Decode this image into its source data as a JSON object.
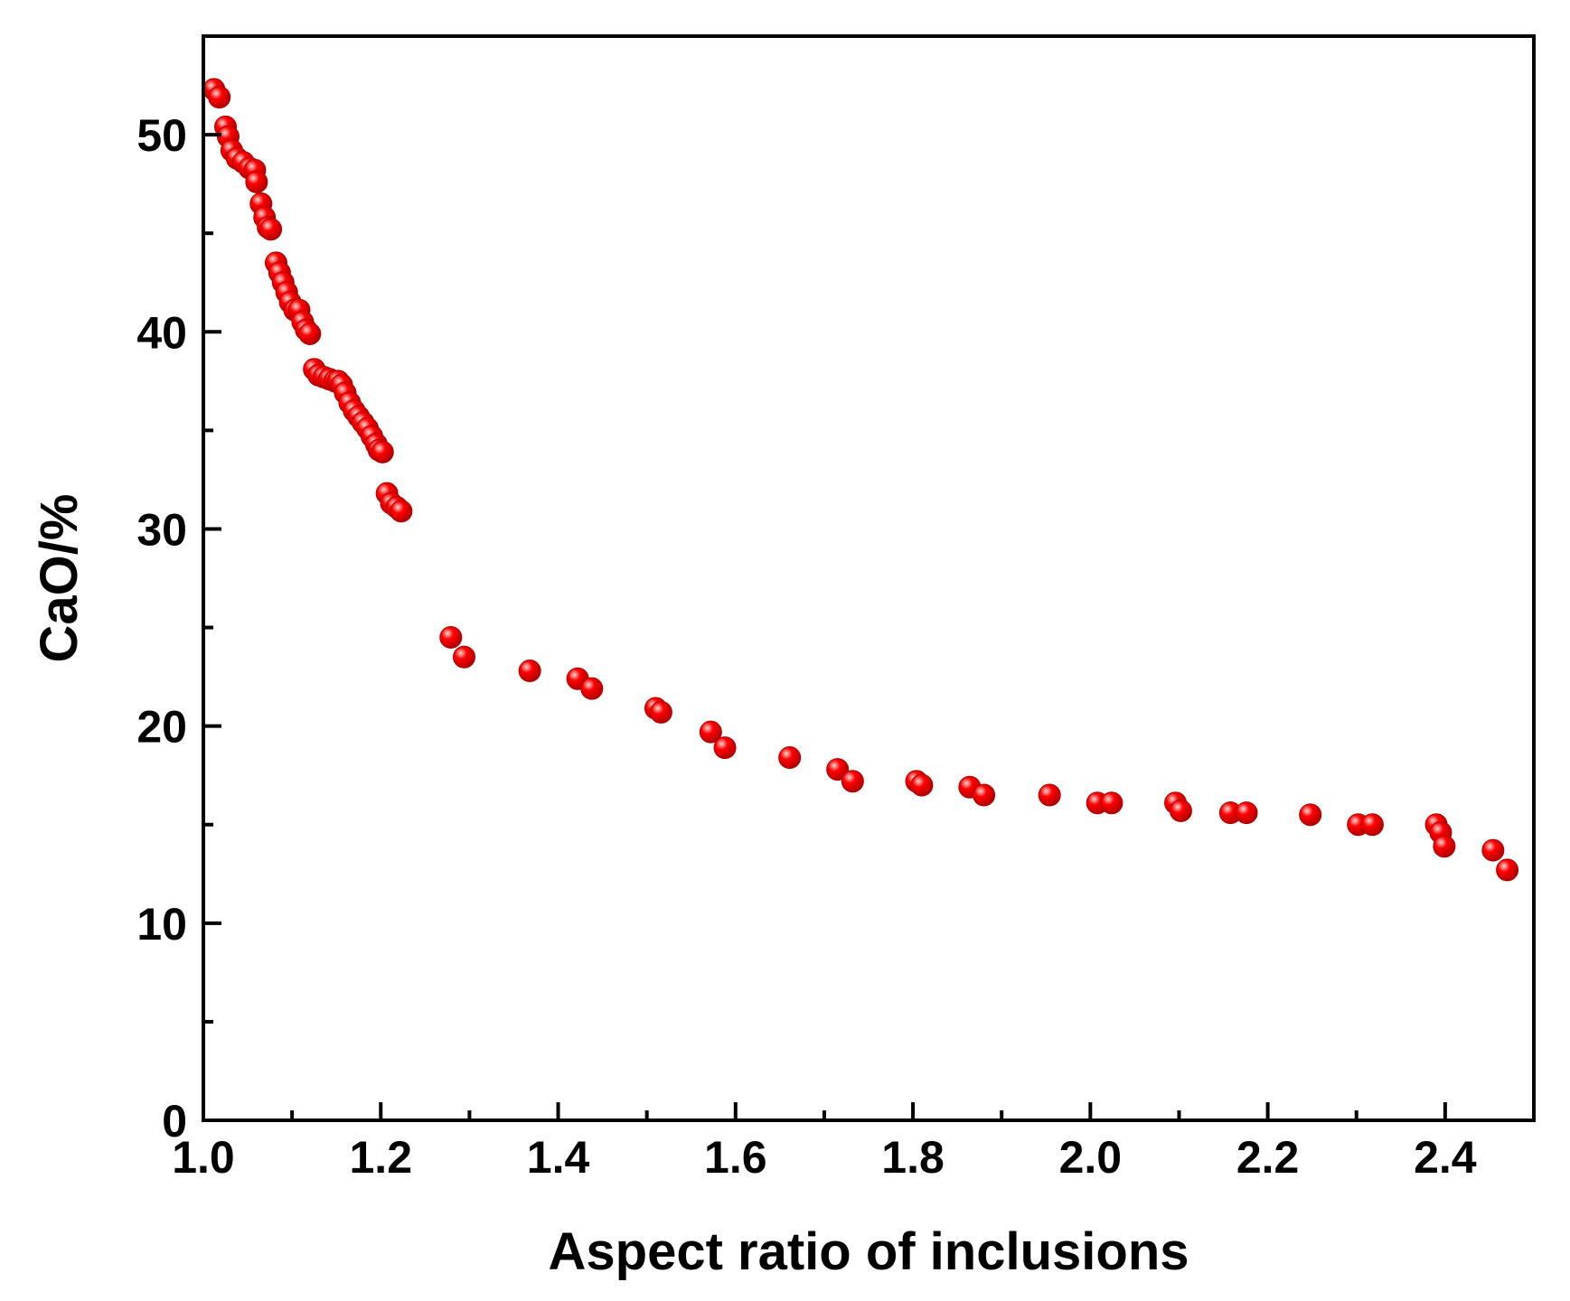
{
  "chart_data": {
    "type": "scatter",
    "title": "",
    "xlabel": "Aspect ratio of inclusions",
    "ylabel": "CaO/%",
    "xlim": [
      1.0,
      2.5
    ],
    "ylim": [
      0,
      55
    ],
    "xticks": [
      1.0,
      1.2,
      1.4,
      1.6,
      1.8,
      2.0,
      2.2,
      2.4
    ],
    "xtick_labels": [
      "1.0",
      "1.2",
      "1.4",
      "1.6",
      "1.8",
      "2.0",
      "2.2",
      "2.4"
    ],
    "yticks": [
      0,
      10,
      20,
      30,
      40,
      50
    ],
    "ytick_labels": [
      "0",
      "10",
      "20",
      "30",
      "40",
      "50"
    ],
    "grid": false,
    "legend": "none",
    "marker_color": "#ff0000",
    "marker_highlight": "#ffd6d6",
    "marker_edge": "#b00000",
    "axis_color": "#000000",
    "series": [
      {
        "name": "inclusions",
        "points": [
          [
            1.012,
            52.3
          ],
          [
            1.018,
            51.9
          ],
          [
            1.025,
            50.4
          ],
          [
            1.028,
            49.9
          ],
          [
            1.032,
            49.2
          ],
          [
            1.038,
            48.8
          ],
          [
            1.045,
            48.6
          ],
          [
            1.052,
            48.3
          ],
          [
            1.058,
            48.2
          ],
          [
            1.06,
            47.6
          ],
          [
            1.065,
            46.5
          ],
          [
            1.069,
            45.8
          ],
          [
            1.073,
            45.3
          ],
          [
            1.076,
            45.2
          ],
          [
            1.082,
            43.5
          ],
          [
            1.086,
            43.0
          ],
          [
            1.09,
            42.5
          ],
          [
            1.094,
            42.0
          ],
          [
            1.098,
            41.5
          ],
          [
            1.103,
            41.1
          ],
          [
            1.108,
            41.1
          ],
          [
            1.112,
            40.5
          ],
          [
            1.116,
            40.1
          ],
          [
            1.12,
            39.9
          ],
          [
            1.125,
            38.1
          ],
          [
            1.13,
            37.8
          ],
          [
            1.136,
            37.7
          ],
          [
            1.142,
            37.6
          ],
          [
            1.148,
            37.5
          ],
          [
            1.152,
            37.5
          ],
          [
            1.156,
            37.3
          ],
          [
            1.16,
            36.9
          ],
          [
            1.165,
            36.4
          ],
          [
            1.17,
            36.0
          ],
          [
            1.175,
            35.7
          ],
          [
            1.18,
            35.4
          ],
          [
            1.185,
            35.1
          ],
          [
            1.19,
            34.7
          ],
          [
            1.195,
            34.3
          ],
          [
            1.198,
            34.0
          ],
          [
            1.202,
            33.9
          ],
          [
            1.207,
            31.8
          ],
          [
            1.212,
            31.3
          ],
          [
            1.218,
            31.1
          ],
          [
            1.223,
            30.9
          ],
          [
            1.279,
            24.5
          ],
          [
            1.294,
            23.5
          ],
          [
            1.368,
            22.8
          ],
          [
            1.422,
            22.4
          ],
          [
            1.438,
            21.9
          ],
          [
            1.51,
            20.9
          ],
          [
            1.516,
            20.7
          ],
          [
            1.572,
            19.7
          ],
          [
            1.588,
            18.9
          ],
          [
            1.661,
            18.4
          ],
          [
            1.715,
            17.8
          ],
          [
            1.732,
            17.2
          ],
          [
            1.804,
            17.2
          ],
          [
            1.81,
            17.0
          ],
          [
            1.864,
            16.9
          ],
          [
            1.88,
            16.5
          ],
          [
            1.954,
            16.5
          ],
          [
            2.008,
            16.1
          ],
          [
            2.024,
            16.1
          ],
          [
            2.096,
            16.1
          ],
          [
            2.102,
            15.7
          ],
          [
            2.158,
            15.6
          ],
          [
            2.176,
            15.6
          ],
          [
            2.248,
            15.5
          ],
          [
            2.302,
            15.0
          ],
          [
            2.318,
            15.0
          ],
          [
            2.39,
            15.0
          ],
          [
            2.395,
            14.6
          ],
          [
            2.399,
            13.9
          ],
          [
            2.454,
            13.7
          ],
          [
            2.47,
            12.7
          ]
        ]
      }
    ]
  }
}
